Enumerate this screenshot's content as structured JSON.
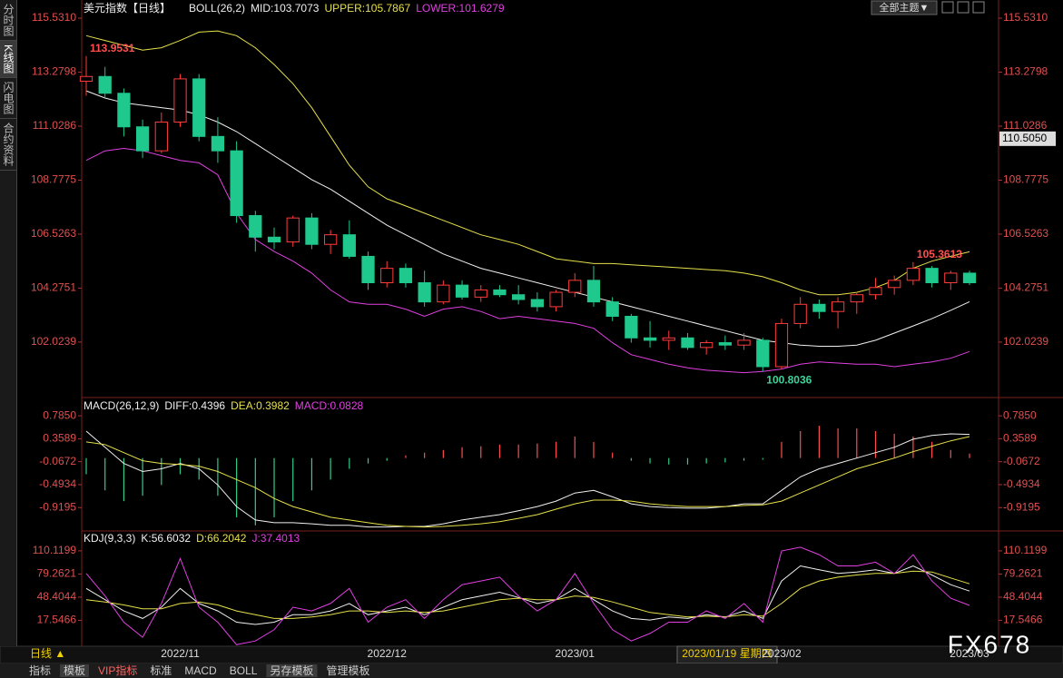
{
  "sidebar": [
    "分时图",
    "K线图",
    "闪电图",
    "合约资料"
  ],
  "theme_button": "全部主题▼",
  "crosshair_label": "2023/01/19 星期四",
  "watermark": "FX678",
  "footer": {
    "period": "日线 ▲",
    "tabs": [
      "指标",
      "模板",
      "VIP指标",
      "标准",
      "MACD",
      "BOLL",
      "另存模板",
      "管理模板"
    ]
  },
  "chart_data": [
    {
      "type": "candlestick",
      "title": "美元指数【日线】",
      "indicator": "BOLL(26,2)",
      "categories": [
        null,
        null,
        null,
        null,
        null,
        "2022/11",
        null,
        null,
        null,
        null,
        null,
        null,
        null,
        null,
        null,
        null,
        "2022/12",
        null,
        null,
        null,
        null,
        null,
        null,
        null,
        null,
        null,
        "2023/01",
        null,
        null,
        null,
        null,
        null,
        null,
        null,
        null,
        null,
        null,
        "2023/02",
        null,
        null,
        null,
        null,
        null,
        null,
        null,
        null,
        null,
        "2023/03"
      ],
      "up_color": "#ff3b3b",
      "down_color": "#1fc88c",
      "open": [
        112.9,
        113.1,
        112.4,
        111.0,
        110.0,
        111.2,
        113.0,
        110.6,
        110.0,
        107.3,
        106.4,
        106.2,
        107.2,
        106.1,
        106.5,
        105.6,
        104.5,
        105.1,
        104.5,
        103.7,
        104.4,
        103.9,
        104.2,
        104.0,
        103.8,
        103.5,
        104.1,
        104.6,
        103.7,
        103.1,
        102.2,
        102.1,
        102.2,
        101.8,
        102.0,
        101.9,
        102.1,
        101.0,
        102.8,
        103.6,
        103.3,
        103.7,
        104.0,
        104.3,
        104.6,
        105.1,
        104.5,
        104.9
      ],
      "high": [
        113.9531,
        113.5,
        112.6,
        111.3,
        111.6,
        113.2,
        113.2,
        111.4,
        110.4,
        107.5,
        106.8,
        107.3,
        107.4,
        106.7,
        107.1,
        105.8,
        105.4,
        105.3,
        105.0,
        104.6,
        104.6,
        104.4,
        104.4,
        104.4,
        104.1,
        104.2,
        104.9,
        105.2,
        103.9,
        103.2,
        102.9,
        102.5,
        102.4,
        102.1,
        102.3,
        102.4,
        102.2,
        103.0,
        103.9,
        103.8,
        103.9,
        104.1,
        104.7,
        104.8,
        105.3613,
        105.2,
        105.0,
        105.0
      ],
      "low": [
        112.3,
        112.2,
        110.6,
        109.7,
        109.9,
        111.0,
        110.4,
        109.5,
        107.0,
        105.8,
        105.9,
        106.0,
        105.9,
        105.7,
        105.5,
        104.2,
        104.3,
        104.3,
        103.5,
        103.6,
        103.8,
        103.7,
        103.9,
        103.6,
        103.3,
        103.3,
        103.9,
        103.5,
        102.9,
        102.0,
        101.8,
        101.7,
        101.7,
        101.5,
        101.7,
        101.7,
        100.8036,
        100.9,
        102.6,
        103.0,
        102.6,
        103.2,
        103.8,
        104.0,
        104.4,
        104.3,
        104.2,
        104.4
      ],
      "close": [
        113.1,
        112.4,
        111.0,
        110.0,
        111.2,
        113.0,
        110.6,
        110.0,
        107.3,
        106.4,
        106.2,
        107.2,
        106.1,
        106.5,
        105.6,
        104.5,
        105.1,
        104.5,
        103.7,
        104.4,
        103.9,
        104.2,
        104.0,
        103.8,
        103.5,
        104.1,
        104.6,
        103.7,
        103.1,
        102.2,
        102.1,
        102.2,
        101.8,
        102.0,
        101.9,
        102.1,
        101.0,
        102.8,
        103.6,
        103.3,
        103.7,
        104.0,
        104.3,
        104.6,
        105.1,
        104.5,
        104.9,
        104.5
      ],
      "series": [
        {
          "name": "MID:103.7073",
          "color": "#f0f0f0",
          "values": [
            112.5,
            112.2,
            112.0,
            111.9,
            111.8,
            111.7,
            111.5,
            111.2,
            110.8,
            110.3,
            109.8,
            109.3,
            108.8,
            108.4,
            107.9,
            107.4,
            106.9,
            106.5,
            106.1,
            105.7,
            105.4,
            105.1,
            104.9,
            104.7,
            104.5,
            104.3,
            104.1,
            103.9,
            103.7,
            103.5,
            103.3,
            103.1,
            102.9,
            102.7,
            102.5,
            102.3,
            102.1,
            102.0,
            101.9,
            101.85,
            101.85,
            101.9,
            102.1,
            102.4,
            102.7,
            103.0,
            103.35,
            103.71
          ]
        },
        {
          "name": "UPPER:105.7867",
          "color": "#e6e04a",
          "values": [
            114.8,
            114.6,
            114.4,
            114.2,
            114.3,
            114.6,
            114.95,
            115.0,
            114.8,
            114.3,
            113.6,
            112.8,
            111.8,
            110.6,
            109.4,
            108.5,
            108.0,
            107.7,
            107.4,
            107.1,
            106.8,
            106.5,
            106.3,
            106.1,
            105.8,
            105.5,
            105.4,
            105.3,
            105.3,
            105.25,
            105.2,
            105.15,
            105.1,
            105.05,
            105.0,
            104.9,
            104.75,
            104.5,
            104.2,
            104.0,
            104.0,
            104.1,
            104.3,
            104.6,
            105.1,
            105.4,
            105.6,
            105.79
          ]
        },
        {
          "name": "LOWER:101.6279",
          "color": "#e040e0",
          "values": [
            109.6,
            110.0,
            110.1,
            110.0,
            109.8,
            109.6,
            109.5,
            109.0,
            107.4,
            106.3,
            105.8,
            105.4,
            104.9,
            104.2,
            103.7,
            103.6,
            103.6,
            103.4,
            103.1,
            103.4,
            103.5,
            103.3,
            103.0,
            103.1,
            103.0,
            102.9,
            102.8,
            102.6,
            102.0,
            101.5,
            101.3,
            101.1,
            100.95,
            100.85,
            100.8,
            100.75,
            100.8,
            100.9,
            101.1,
            101.2,
            101.15,
            101.1,
            101.1,
            101.0,
            101.1,
            101.2,
            101.35,
            101.63
          ]
        }
      ],
      "annotations": [
        113.9531,
        100.8036,
        105.3613
      ],
      "last_price_tag": {
        "value": 110.505,
        "label": "110.5050"
      },
      "ylim": [
        99.75,
        116.1
      ],
      "yticks": [
        {
          "value": 115.531,
          "label": "115.5310"
        },
        113.2798,
        111.0286,
        108.7775,
        106.5263,
        104.2751,
        102.0239
      ]
    },
    {
      "type": "macd",
      "title": "MACD(26,12,9)",
      "series": [
        {
          "name": "DIFF:0.4396",
          "type": "line",
          "color": "#f0f0f0",
          "values": [
            0.5,
            0.2,
            -0.1,
            -0.25,
            -0.2,
            -0.1,
            -0.2,
            -0.5,
            -0.9,
            -1.15,
            -1.2,
            -1.2,
            -1.22,
            -1.25,
            -1.25,
            -1.28,
            -1.28,
            -1.27,
            -1.27,
            -1.22,
            -1.15,
            -1.1,
            -1.05,
            -0.98,
            -0.9,
            -0.8,
            -0.65,
            -0.6,
            -0.72,
            -0.85,
            -0.9,
            -0.92,
            -0.93,
            -0.93,
            -0.9,
            -0.85,
            -0.85,
            -0.6,
            -0.35,
            -0.2,
            -0.1,
            0.0,
            0.1,
            0.2,
            0.35,
            0.42,
            0.45,
            0.4396
          ]
        },
        {
          "name": "DEA:0.3982",
          "type": "line",
          "color": "#e6e04a",
          "values": [
            0.3,
            0.25,
            0.1,
            -0.05,
            -0.1,
            -0.12,
            -0.15,
            -0.25,
            -0.4,
            -0.55,
            -0.75,
            -0.9,
            -1.0,
            -1.1,
            -1.15,
            -1.2,
            -1.25,
            -1.27,
            -1.28,
            -1.27,
            -1.25,
            -1.22,
            -1.18,
            -1.12,
            -1.05,
            -0.95,
            -0.85,
            -0.78,
            -0.78,
            -0.8,
            -0.85,
            -0.88,
            -0.9,
            -0.9,
            -0.9,
            -0.88,
            -0.87,
            -0.8,
            -0.65,
            -0.5,
            -0.35,
            -0.2,
            -0.1,
            0.0,
            0.12,
            0.22,
            0.32,
            0.3982
          ]
        },
        {
          "name": "MACD:0.0828",
          "type": "bar",
          "color": "#ff4d4d",
          "negative_color": "#33cc88",
          "label_color": "#e040e0",
          "values": [
            -0.3,
            -0.6,
            -0.8,
            -0.7,
            -0.5,
            -0.3,
            -0.4,
            -0.7,
            -1.1,
            -1.25,
            -1.1,
            -0.8,
            -0.6,
            -0.4,
            -0.2,
            -0.1,
            -0.05,
            0.05,
            0.1,
            0.15,
            0.2,
            0.22,
            0.25,
            0.25,
            0.27,
            0.3,
            0.4,
            0.3,
            0.1,
            -0.05,
            -0.1,
            -0.12,
            -0.12,
            -0.1,
            -0.08,
            -0.05,
            -0.03,
            0.3,
            0.5,
            0.6,
            0.55,
            0.55,
            0.5,
            0.45,
            0.4,
            0.3,
            0.15,
            0.0828
          ]
        }
      ],
      "ylim": [
        -1.32,
        1.09
      ],
      "yticks": [
        {
          "value": 0.785,
          "label": "0.7850"
        },
        0.3589,
        -0.0672,
        -0.4934,
        -0.9195
      ]
    },
    {
      "type": "kdj",
      "title": "KDJ(9,3,3)",
      "series": [
        {
          "name": "K:56.6032",
          "color": "#f0f0f0",
          "values": [
            60,
            45,
            30,
            20,
            35,
            60,
            40,
            30,
            15,
            12,
            15,
            25,
            25,
            30,
            40,
            25,
            30,
            35,
            25,
            35,
            45,
            50,
            55,
            48,
            40,
            45,
            60,
            45,
            30,
            20,
            18,
            22,
            20,
            25,
            22,
            30,
            20,
            70,
            90,
            85,
            80,
            82,
            85,
            80,
            90,
            78,
            65,
            56.6032
          ]
        },
        {
          "name": "D:66.2042",
          "color": "#e6e04a",
          "values": [
            45,
            42,
            38,
            33,
            33,
            40,
            42,
            38,
            30,
            25,
            20,
            20,
            22,
            25,
            30,
            30,
            28,
            30,
            28,
            30,
            35,
            40,
            45,
            47,
            45,
            45,
            50,
            48,
            42,
            35,
            28,
            25,
            22,
            23,
            22,
            25,
            23,
            40,
            60,
            70,
            75,
            78,
            80,
            80,
            83,
            82,
            74,
            66.2042
          ]
        },
        {
          "name": "J:37.4013",
          "color": "#e040e0",
          "values": [
            80,
            50,
            15,
            -5,
            40,
            100,
            35,
            15,
            -15,
            -10,
            5,
            35,
            30,
            40,
            60,
            15,
            35,
            45,
            20,
            45,
            65,
            70,
            75,
            50,
            30,
            45,
            80,
            40,
            5,
            -10,
            0,
            15,
            15,
            30,
            20,
            40,
            15,
            110,
            115,
            105,
            90,
            90,
            95,
            80,
            105,
            70,
            47,
            37.4013
          ]
        }
      ],
      "ylim": [
        -17,
        133
      ],
      "yticks": [
        110.1199,
        79.2621,
        48.4044,
        17.5466
      ]
    }
  ]
}
